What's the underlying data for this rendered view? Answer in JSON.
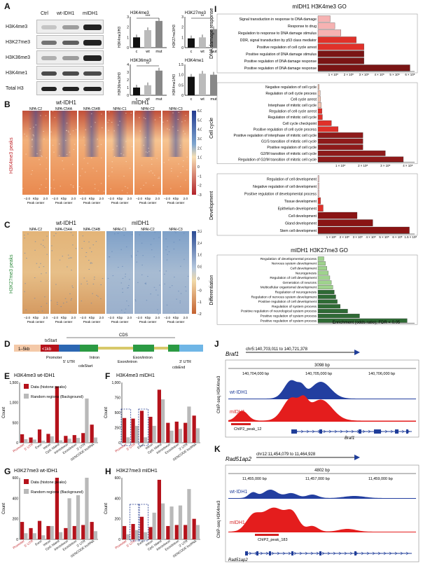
{
  "panelA": {
    "letter": "A",
    "lanes": [
      "Ctrl",
      "wt-IDH1",
      "mIDH1"
    ],
    "rows": [
      "H3K4me3",
      "H3K27me3",
      "H3K36me3",
      "H3K4me1",
      "Total H3"
    ],
    "bars": [
      {
        "title": "H3K4me3",
        "ylabel": "H3K4me3/H3",
        "ylim": [
          0,
          3
        ],
        "ticks": [
          "0",
          "1",
          "2",
          "3"
        ],
        "values": [
          1.0,
          1.7,
          2.6
        ],
        "sig": "***"
      },
      {
        "title": "H3K27me3",
        "ylabel": "H3K27me3/H3",
        "ylim": [
          0,
          3
        ],
        "ticks": [
          "0",
          "1",
          "2",
          "3"
        ],
        "values": [
          0.9,
          1.0,
          1.8
        ],
        "sig": "**"
      },
      {
        "title": "H3K36me3",
        "ylabel": "H3K36me3/H3",
        "ylim": [
          0,
          4
        ],
        "ticks": [
          "0",
          "1",
          "2",
          "3",
          "4"
        ],
        "values": [
          1.0,
          1.3,
          3.2
        ],
        "sig": "**"
      },
      {
        "title": "H3K4me1",
        "ylabel": "H3K4me1/H3",
        "ylim": [
          0,
          1.5
        ],
        "ticks": [
          "0",
          "0.5",
          "1.0",
          "1.5"
        ],
        "values": [
          0.9,
          1.05,
          1.0
        ],
        "sig": ""
      }
    ],
    "xcats": [
      "c",
      "wt",
      "mut"
    ]
  },
  "panelB": {
    "letter": "B",
    "group_left": "wt-IDH1",
    "group_right": "mIDH1",
    "cols": [
      "NPA-C2",
      "NPA-C54A",
      "NPA-C54B",
      "NPAI-C1",
      "NPAI-C2",
      "NPAI-C3"
    ],
    "side": "H3K4me3 peaks",
    "xlab1": "−2.0",
    "xlab2": "Kbp",
    "xlab3": "2.0",
    "xlab4": "Peak center",
    "cb": [
      "6.0",
      "5.0",
      "4.0",
      "3.0",
      "2.0",
      "1.0",
      "0",
      "−1.0",
      "−2.0",
      "−3.0"
    ]
  },
  "panelC": {
    "letter": "C",
    "group_left": "wt-IDH1",
    "group_right": "mIDH1",
    "cols": [
      "NPA-C2",
      "NPA-C54A",
      "NPA-C54B",
      "NPAI-C1",
      "NPAI-C2",
      "NPAI-C3"
    ],
    "side": "H3K27me3 peaks",
    "cb": [
      "3.2",
      "2.4",
      "1.6",
      "0.8",
      "0",
      "−0.8",
      "−1.6",
      "−2.4"
    ]
  },
  "panelD": {
    "letter": "D",
    "cds": "CDS",
    "txStart": "txStart",
    "kb5": "1–5kb",
    "kb1": "<1kb",
    "labels": [
      "Promoter",
      "5' UTR",
      "cdsStart",
      "Intron",
      "Exon/intron",
      "Exon/intron",
      "3' UTR",
      "cdsEnd"
    ]
  },
  "cats": [
    "Promoter",
    "5' UTR",
    "Exon",
    "Intron",
    "CpG Island",
    "Intron/exon",
    "Exon/intron",
    "3' UTR",
    "GENCODE lncRNA"
  ],
  "panelE": {
    "letter": "E",
    "title": "H3K4me3 wt-IDH1",
    "ylabel": "Count",
    "legend": [
      "Data (histone peaks)",
      "Random regions (Background)"
    ],
    "ylim": [
      0,
      1500
    ],
    "ticks": [
      "0",
      "500",
      "1,000",
      "1,500"
    ],
    "data": [
      210,
      130,
      330,
      220,
      1400,
      170,
      190,
      240,
      450
    ],
    "random": [
      90,
      80,
      50,
      160,
      60,
      100,
      120,
      1100,
      130
    ]
  },
  "panelF": {
    "letter": "F",
    "title": "H3K4me3 mIDH1",
    "ylabel": "Count",
    "ylim": [
      0,
      1000
    ],
    "ticks": [
      "0",
      "250",
      "500",
      "750",
      "1,000"
    ],
    "data": [
      410,
      400,
      530,
      430,
      880,
      330,
      350,
      330,
      450
    ],
    "random": [
      90,
      280,
      90,
      280,
      720,
      200,
      230,
      600,
      240
    ]
  },
  "panelG": {
    "letter": "G",
    "title": "H3K27me3 wt-IDH1",
    "ylabel": "Count",
    "legend": [
      "Data (histone peaks)",
      "Random regions (Background)"
    ],
    "ylim": [
      0,
      600
    ],
    "ticks": [
      "0",
      "200",
      "400",
      "600"
    ],
    "data": [
      170,
      110,
      180,
      130,
      600,
      110,
      130,
      140,
      170
    ],
    "random": [
      60,
      60,
      40,
      130,
      70,
      400,
      430,
      610,
      80
    ]
  },
  "panelH": {
    "letter": "H",
    "title": "H3K27me3 mIDH1",
    "ylabel": "Count",
    "ylim": [
      0,
      600
    ],
    "ticks": [
      "0",
      "200",
      "400",
      "600"
    ],
    "data": [
      130,
      150,
      220,
      120,
      580,
      130,
      140,
      140,
      200
    ],
    "random": [
      50,
      90,
      70,
      260,
      350,
      320,
      330,
      490,
      140
    ]
  },
  "panelI": {
    "letter": "I",
    "title1": "mIDH1 H3K4me3 GO",
    "title2": "mIDH1 H3K27me3 GO",
    "xlab": "Enrichment (odds ratio); FDR < 0.05",
    "groups": [
      {
        "name": "DNA damage response",
        "ticks": [
          "1 × 10⁸",
          "2 × 10⁸",
          "3 × 10⁸",
          "4 × 10⁸",
          "5 × 10⁸",
          "6 × 10⁸"
        ],
        "xmax": 6.3,
        "terms": [
          "Signal transduction in response to DNA damage",
          "Response to drug",
          "Regulation to response to DNA damage stimulus",
          "DDR, signal transduction by p53 class mediator",
          "Positive regulation of cell cycle arrest",
          "Positive regulation of DNA damage stimulus",
          "Positive regulation of DNA damage response",
          "Positive regulation of DNA damage response"
        ],
        "values": [
          0.8,
          1.1,
          1.5,
          2.5,
          3.0,
          3.0,
          3.0,
          6.0
        ]
      },
      {
        "name": "Cell cycle",
        "ticks": [
          "1 × 10⁸",
          "2 × 10⁸",
          "3 × 10⁸",
          "4 × 10⁸"
        ],
        "xmax": 4.3,
        "terms": [
          "Negative regulation of cell cycle",
          "Regulation of cell cycle process",
          "Cell cycle arrest",
          "Interphase of mitotic cell cycle",
          "Regulation of cell cycle arrest",
          "Regulation of mitotic cell cycle",
          "Cell cycle checkpoint",
          "Positive regulation of cell cycle process",
          "Positive regulation of interphase of mitotic cell cycle",
          "G1/S transition of mitotic cell cycle",
          "Positive regulation of cell cycle",
          "G2/M transition of mitotic cell cycle",
          "Regulation of G2/M transition of mitotic cell cycle"
        ],
        "values": [
          0.05,
          0.1,
          0.12,
          0.15,
          0.18,
          0.2,
          0.6,
          0.9,
          2.0,
          2.0,
          2.0,
          3.0,
          3.8
        ]
      },
      {
        "name": "Development",
        "ticks": [
          "1 × 10⁸",
          "2 × 10⁸",
          "3 × 10⁸",
          "4 × 10⁸",
          "5 × 10⁸",
          "6 × 10⁸",
          "1.5 × 10⁸"
        ],
        "xmax": 7.4,
        "terms": [
          "Regulation of cell development",
          "Negative regulation of cell development",
          "Positive regulation of developmental process",
          "Tissue development",
          "Epithelium development",
          "Cell development",
          "Gland development",
          "Stem cell development"
        ],
        "values": [
          0.05,
          0.05,
          0.1,
          0.2,
          0.4,
          3.0,
          4.2,
          7.0
        ]
      },
      {
        "name": "Differentiation",
        "ticks": [],
        "xmax": 6.5,
        "terms": [
          "Regulation of developmental process",
          "Nervous system development",
          "Cell development",
          "Neurogenesis",
          "Regulation of cell development",
          "Generation of neurons",
          "Multicellular organismal development",
          "Regulation of neurogenesis",
          "Regulation of nervous system development",
          "Positive regulation of cell development",
          "Regulation of system process",
          "Positive regulation of neurological system process",
          "Positive regulation of system process",
          "Positive regulation of system process"
        ],
        "values": [
          0.4,
          0.5,
          0.6,
          0.7,
          0.8,
          0.9,
          1.0,
          1.1,
          1.2,
          1.3,
          1.5,
          2.0,
          2.8,
          6.0
        ]
      }
    ]
  },
  "panelJ": {
    "letter": "J",
    "gene": "Braf1",
    "coord": "chr5:140,703,011 to 140,721,378",
    "scale": "3098 bp",
    "ticks": [
      "140,704,000 bp",
      "140,705,000 bp",
      "140,706,000 bp"
    ],
    "ylabel": "ChIP-seq H3K4me3",
    "wt": "wt-IDH1",
    "mut": "mIDH1",
    "peak": "ChIP2_peak_12",
    "genename": "Braf1"
  },
  "panelK": {
    "letter": "K",
    "gene": "Rad51ap2",
    "coord": "chr12:11,454,079 to 11,464,928",
    "scale": "4802 bp",
    "ticks": [
      "11,455,000 bp",
      "11,457,000 bp",
      "11,459,000 bp"
    ],
    "ylabel": "ChIP-seq H3K4me3",
    "wt": "wt-IDH1",
    "mut": "mIDH1",
    "peak": "ChIP2_peak_183",
    "genename": "Rad51ap2"
  },
  "colors": {
    "red": "#b5121b",
    "gray": "#b9b9b9",
    "blue": "#1f3d99",
    "green": "#3a7a3a"
  }
}
